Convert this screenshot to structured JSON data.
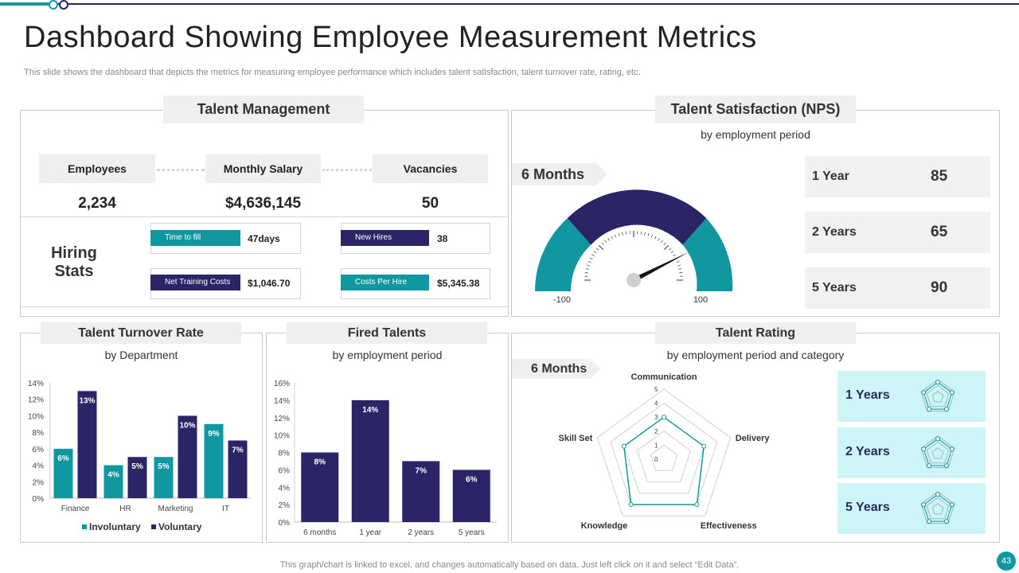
{
  "header": {
    "title": "Dashboard Showing Employee Measurement Metrics",
    "subtitle": "This slide shows the dashboard that depicts the metrics for measuring employee performance which includes talent satisfaction, talent turnover rate, rating, etc."
  },
  "footer": {
    "note": "This graph/chart is linked to excel, and changes automatically based on data. Just left click on it and select “Edit Data”.",
    "page_number": "43"
  },
  "colors": {
    "teal": "#11979f",
    "navy": "#2b2466",
    "light_cyan": "#cdf4f6"
  },
  "talent_management": {
    "title": "Talent Management",
    "metrics": [
      {
        "label": "Employees",
        "value": "2,234"
      },
      {
        "label": "Monthly Salary",
        "value": "$4,636,145"
      },
      {
        "label": "Vacancies",
        "value": "50"
      }
    ],
    "hiring_stats_label": "Hiring Stats",
    "hiring_stats": [
      {
        "label": "Time to fill",
        "value": "47days"
      },
      {
        "label": "New Hires",
        "value": "38"
      },
      {
        "label": "Net Training Costs",
        "value": "$1,046.70"
      },
      {
        "label": "Costs Per Hire",
        "value": "$5,345.38"
      }
    ]
  },
  "talent_satisfaction": {
    "title": "Talent Satisfaction (NPS)",
    "subtitle": "by employment period",
    "gauge_label": "6 Months",
    "gauge_min": "-100",
    "gauge_max": "100",
    "rows": [
      {
        "label": "1 Year",
        "value": "85"
      },
      {
        "label": "2 Years",
        "value": "65"
      },
      {
        "label": "5 Years",
        "value": "90"
      }
    ]
  },
  "turnover": {
    "title": "Talent Turnover Rate",
    "subtitle": "by Department"
  },
  "fired": {
    "title": "Fired Talents",
    "subtitle": "by employment period"
  },
  "rating": {
    "title": "Talent Rating",
    "subtitle": "by employment period and category",
    "period_label": "6 Months",
    "cards": [
      {
        "label": "1 Years"
      },
      {
        "label": "2 Years"
      },
      {
        "label": "5 Years"
      }
    ]
  },
  "chart_data": [
    {
      "type": "bar",
      "title": "Talent Turnover Rate",
      "categories": [
        "Finance",
        "HR",
        "Marketing",
        "IT"
      ],
      "series": [
        {
          "name": "Involuntary",
          "values": [
            6,
            4,
            5,
            9
          ],
          "labels": [
            "6%",
            "4%",
            "5%",
            "9%"
          ],
          "color": "#11979f"
        },
        {
          "name": "Voluntary",
          "values": [
            13,
            5,
            10,
            7
          ],
          "labels": [
            "13%",
            "5%",
            "10%",
            "7%"
          ],
          "color": "#2b2466"
        }
      ],
      "yticks": [
        "0%",
        "2%",
        "4%",
        "6%",
        "8%",
        "10%",
        "12%",
        "14%"
      ],
      "ylim": [
        0,
        14
      ],
      "legend": "bottom"
    },
    {
      "type": "bar",
      "title": "Fired Talents",
      "categories": [
        "6 months",
        "1 year",
        "2 years",
        "5 years"
      ],
      "values": [
        8,
        14,
        7,
        6
      ],
      "labels": [
        "8%",
        "14%",
        "7%",
        "6%"
      ],
      "color": "#2b2466",
      "yticks": [
        "0%",
        "2%",
        "4%",
        "6%",
        "8%",
        "10%",
        "12%",
        "14%",
        "16%"
      ],
      "ylim": [
        0,
        16
      ]
    },
    {
      "type": "radar",
      "title": "Talent Rating",
      "axes": [
        "Communication",
        "Delivery",
        "Effectiveness",
        "Knowledge",
        "Skill Set"
      ],
      "values": [
        3,
        3,
        4,
        4,
        3
      ],
      "rticks": [
        "0",
        "1",
        "2",
        "3",
        "4",
        "5"
      ],
      "rmax": 5,
      "color": "#11979f"
    },
    {
      "type": "gauge",
      "title": "Talent Satisfaction (NPS)",
      "min": -100,
      "max": 100,
      "needle_value": 70
    }
  ]
}
